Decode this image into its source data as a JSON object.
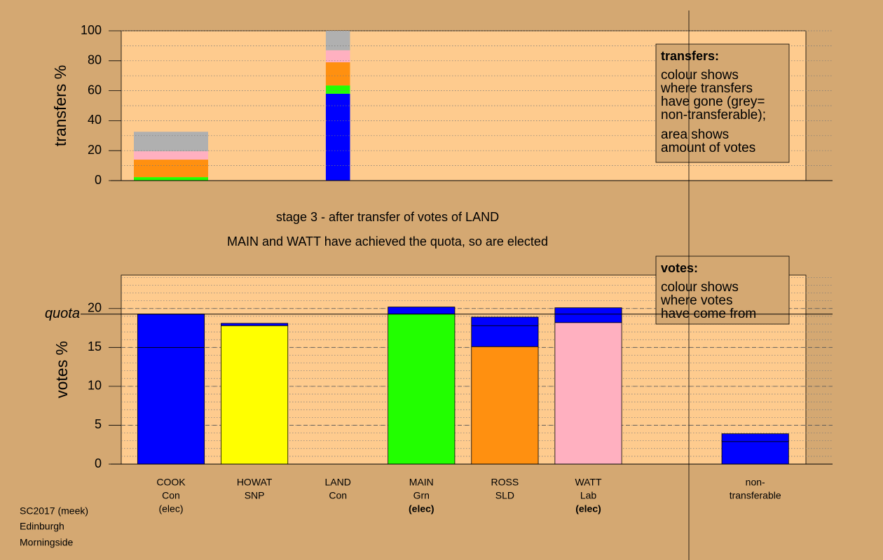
{
  "footer": [
    "SC2017 (meek)",
    "Edinburgh",
    "Morningside"
  ],
  "chart_data": [
    {
      "type": "bar",
      "stacked": true,
      "ylabel": "transfers %",
      "ylim": [
        0,
        100
      ],
      "yticks": [
        0,
        20,
        40,
        60,
        80,
        100
      ],
      "grid_minor": 10,
      "bar_outline": false,
      "bar_widths": [
        0.89,
        null,
        0.29,
        null,
        null,
        null,
        null,
        null
      ],
      "series": [
        {
          "color": "#0000ff",
          "values": [
            0,
            null,
            58,
            null,
            null,
            null,
            null,
            null
          ]
        },
        {
          "color": "#22ff00",
          "values": [
            2.3,
            null,
            5.5,
            null,
            null,
            null,
            null,
            null
          ]
        },
        {
          "color": "#ff9010",
          "values": [
            11.7,
            null,
            15.5,
            null,
            null,
            null,
            null,
            null
          ]
        },
        {
          "color": "#ffb0c0",
          "values": [
            5.6,
            null,
            8,
            null,
            null,
            null,
            null,
            null
          ]
        },
        {
          "color": "#b0b0b0",
          "values": [
            13,
            null,
            13,
            null,
            null,
            null,
            null,
            null
          ]
        }
      ],
      "legend": {
        "title": "transfers:",
        "lines": [
          "colour shows",
          "where transfers",
          "have gone (grey=",
          "non-transferable);"
        ],
        "lines2": [
          "area shows",
          "amount of votes"
        ]
      },
      "subtitle": "stage 3 - after transfer of votes of LAND",
      "title": "MAIN and WATT have achieved the quota, so are elected"
    },
    {
      "type": "bar",
      "stacked": true,
      "ylabel": "votes %",
      "ylim": [
        0,
        24.3
      ],
      "yticks": [
        0,
        5,
        10,
        15,
        20
      ],
      "grid_minor": 1,
      "bar_outline": true,
      "quota": {
        "label": "quota",
        "value": 19.28
      },
      "label_lines": [
        [
          "COOK",
          "Con"
        ],
        [
          "HOWAT",
          "SNP"
        ],
        [
          "LAND",
          "Con"
        ],
        [
          "MAIN",
          "Grn"
        ],
        [
          "ROSS",
          "SLD"
        ],
        [
          "WATT",
          "Lab"
        ],
        null,
        [
          "non-",
          "transferable"
        ]
      ],
      "notes": [
        "(elec)",
        null,
        null,
        "(elec)",
        null,
        "(elec)",
        null,
        null
      ],
      "notes_bold": [
        false,
        false,
        false,
        true,
        false,
        true,
        false,
        false
      ],
      "series": [
        {
          "colors": [
            "#0000ff",
            "#ffff00",
            "#0000ff",
            "#22ff00",
            "#ff9010",
            "#ffb0c0",
            null,
            "#0000ff"
          ],
          "values": [
            15,
            17.8,
            0,
            19.3,
            15.1,
            18.2,
            null,
            2.9
          ]
        },
        {
          "color": "#0000ff",
          "values": [
            4.3,
            0.3,
            null,
            0.9,
            2.7,
            1.9,
            null,
            1.0
          ]
        },
        {
          "color": "#0000ff",
          "values": [
            null,
            null,
            null,
            null,
            1.1,
            null,
            null,
            null
          ]
        }
      ],
      "legend": {
        "title": "votes:",
        "lines": [
          "colour shows",
          "where votes",
          "have come from"
        ]
      }
    }
  ]
}
